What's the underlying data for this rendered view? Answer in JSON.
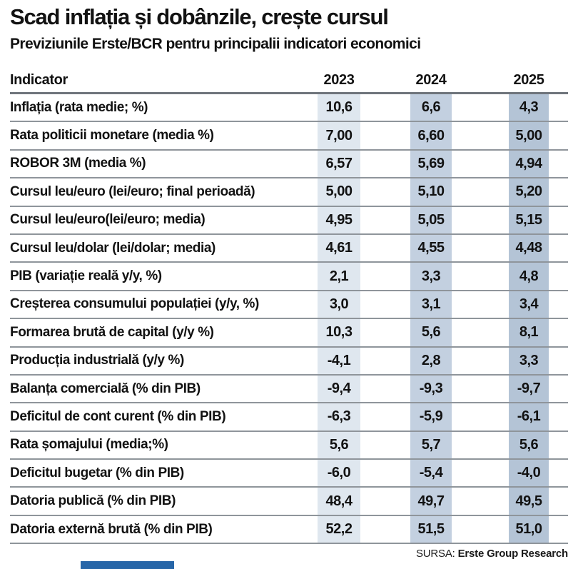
{
  "page": {
    "title": "Scad inflația și dobânzile, crește cursul",
    "subtitle": "Previziunile Erste/BCR pentru principalii indicatori economici"
  },
  "chart_data": {
    "type": "table",
    "title": "Scad inflația și dobânzile, crește cursul",
    "subtitle": "Previziunile Erste/BCR pentru principalii indicatori economici",
    "columns": [
      "Indicator",
      "2023",
      "2024",
      "2025"
    ],
    "rows": [
      [
        "Inflația (rata medie; %)",
        "10,6",
        "6,6",
        "4,3"
      ],
      [
        "Rata politicii monetare (media %)",
        "7,00",
        "6,60",
        "5,00"
      ],
      [
        "ROBOR 3M (media %)",
        "6,57",
        "5,69",
        "4,94"
      ],
      [
        "Cursul leu/euro (lei/euro; final perioadă)",
        "5,00",
        "5,10",
        "5,20"
      ],
      [
        "Cursul leu/euro(lei/euro; media)",
        "4,95",
        "5,05",
        "5,15"
      ],
      [
        "Cursul leu/dolar (lei/dolar; media)",
        "4,61",
        "4,55",
        "4,48"
      ],
      [
        "PIB (variație reală y/y, %)",
        "2,1",
        "3,3",
        "4,8"
      ],
      [
        "Creșterea consumului populației (y/y, %)",
        "3,0",
        "3,1",
        "3,4"
      ],
      [
        "Formarea brută de capital (y/y %)",
        "10,3",
        "5,6",
        "8,1"
      ],
      [
        "Producția industrială (y/y %)",
        "-4,1",
        "2,8",
        "3,3"
      ],
      [
        "Balanța comercială (% din PIB)",
        "-9,4",
        "-9,3",
        "-9,7"
      ],
      [
        "Deficitul de cont curent (% din PIB)",
        "-6,3",
        "-5,9",
        "-6,1"
      ],
      [
        "Rata șomajului (media;%)",
        "5,6",
        "5,7",
        "5,6"
      ],
      [
        "Deficitul bugetar (% din PIB)",
        "-6,0",
        "-5,4",
        "-4,0"
      ],
      [
        "Datoria publică (% din PIB)",
        "48,4",
        "49,7",
        "49,5"
      ],
      [
        "Datoria externă brută (% din PIB)",
        "52,2",
        "51,5",
        "51,0"
      ]
    ],
    "source": "Erste Group Research",
    "layout": {
      "grid": "horizontal rules only",
      "value_columns_shaded": true
    }
  },
  "footer": {
    "source_label": "SURSA:",
    "source_value": "Erste Group Research"
  },
  "colors": {
    "band_2023": "#dfe7ef",
    "band_2024": "#c3d0e0",
    "band_2025": "#b4c4d6",
    "row_line": "#8f959b",
    "header_line": "#6f757c",
    "text": "#121212",
    "brand_bar": "#2766a8"
  }
}
